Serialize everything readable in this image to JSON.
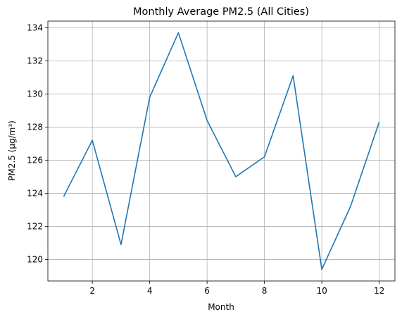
{
  "chart_data": {
    "type": "line",
    "title": "Monthly Average PM2.5 (All Cities)",
    "xlabel": "Month",
    "ylabel": "PM2.5 (μg/m³)",
    "xlim": [
      0.45,
      12.55
    ],
    "ylim": [
      118.7,
      134.4
    ],
    "xticks": [
      2,
      4,
      6,
      8,
      10,
      12
    ],
    "yticks": [
      120,
      122,
      124,
      126,
      128,
      130,
      132,
      134
    ],
    "grid": true,
    "series": [
      {
        "color": "#1f77b4",
        "x": [
          1,
          2,
          3,
          4,
          5,
          6,
          7,
          8,
          9,
          10,
          11,
          12
        ],
        "y": [
          123.8,
          127.2,
          120.9,
          129.8,
          133.7,
          128.4,
          125.0,
          126.2,
          131.1,
          119.4,
          123.2,
          128.3
        ]
      }
    ]
  }
}
